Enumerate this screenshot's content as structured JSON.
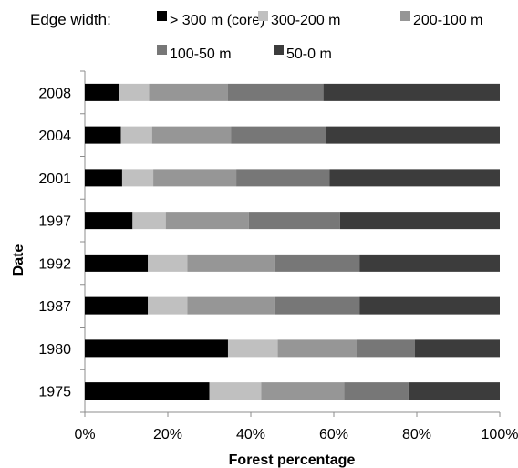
{
  "chart_data": {
    "type": "bar",
    "orientation": "horizontal",
    "stacked": "percent",
    "xlabel": "Forest percentage",
    "ylabel": "Date",
    "xlim": [
      0,
      100
    ],
    "x_ticks": [
      "0%",
      "20%",
      "40%",
      "60%",
      "80%",
      "100%"
    ],
    "grid": false,
    "legend": {
      "title": "Edge width:",
      "placement": "top"
    },
    "categories": [
      "2008",
      "2004",
      "2001",
      "1997",
      "1992",
      "1987",
      "1980",
      "1975"
    ],
    "series": [
      {
        "name": "> 300 m (core)",
        "color": "#000000",
        "values": [
          8.3,
          8.7,
          9.0,
          11.5,
          15.2,
          15.2,
          34.5,
          30.0
        ]
      },
      {
        "name": "300-200  m",
        "color": "#c0c0c0",
        "values": [
          7.2,
          7.5,
          7.5,
          8.0,
          9.5,
          9.5,
          12.0,
          12.5
        ]
      },
      {
        "name": "200-100  m",
        "color": "#969696",
        "values": [
          19.0,
          19.0,
          20.0,
          20.0,
          21.0,
          21.0,
          19.0,
          20.0
        ]
      },
      {
        "name": "100-50  m",
        "color": "#777777",
        "values": [
          23.0,
          23.0,
          22.5,
          22.0,
          20.5,
          20.5,
          14.0,
          15.5
        ]
      },
      {
        "name": "50-0  m",
        "color": "#3c3c3c",
        "values": [
          42.5,
          41.8,
          41.0,
          38.5,
          33.8,
          33.8,
          20.5,
          22.0
        ]
      }
    ]
  }
}
